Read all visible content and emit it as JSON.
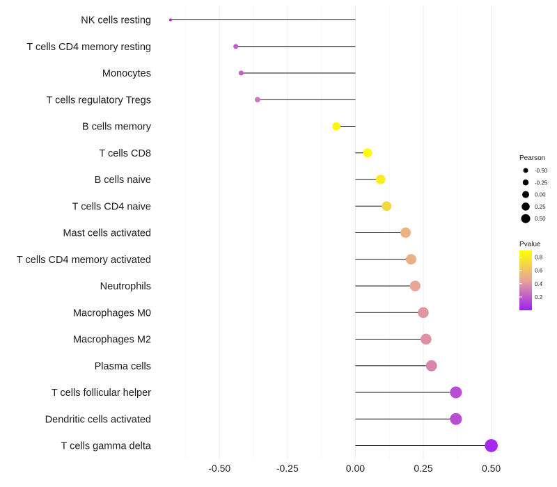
{
  "chart_data": {
    "type": "lollipop",
    "title": "",
    "xlabel": "",
    "ylabel": "",
    "xlim": [
      -0.68,
      0.52
    ],
    "x_ticks": [
      -0.5,
      -0.25,
      0.0,
      0.25,
      0.5
    ],
    "x_tick_labels": [
      "-0.50",
      "-0.25",
      "0.00",
      "0.25",
      "0.50"
    ],
    "grid": true,
    "categories": [
      "NK cells resting",
      "T cells CD4 memory resting",
      "Monocytes",
      "T cells regulatory  Tregs",
      "B cells memory",
      "T cells CD8",
      "B cells naive",
      "T cells CD4 naive",
      "Mast cells activated",
      "T cells CD4 memory activated",
      "Neutrophils",
      "Macrophages M0",
      "Macrophages M2",
      "Plasma cells",
      "T cells follicular helper",
      "Dendritic cells activated",
      "T cells gamma delta"
    ],
    "pearson": [
      -0.68,
      -0.44,
      -0.42,
      -0.36,
      -0.07,
      0.045,
      0.093,
      0.115,
      0.185,
      0.205,
      0.22,
      0.25,
      0.26,
      0.28,
      0.37,
      0.37,
      0.5
    ],
    "pvalue": [
      0.02,
      0.2,
      0.22,
      0.3,
      0.85,
      0.9,
      0.8,
      0.7,
      0.52,
      0.5,
      0.45,
      0.4,
      0.38,
      0.35,
      0.15,
      0.15,
      0.03
    ],
    "size_legend": {
      "title": "Pearson",
      "values": [
        -0.5,
        -0.25,
        0.0,
        0.25,
        0.5
      ],
      "labels": [
        "-0.50",
        "-0.25",
        "0.00",
        "0.25",
        "0.50"
      ]
    },
    "color_legend": {
      "title": "Pvalue",
      "range": [
        0.0,
        0.9
      ],
      "ticks": [
        0.2,
        0.4,
        0.6,
        0.8
      ],
      "tick_labels": [
        "0.2",
        "0.4",
        "0.6",
        "0.8"
      ],
      "colors": {
        "low": "#a020f0",
        "mid": "#e8a598",
        "high": "#ffff00"
      }
    }
  }
}
